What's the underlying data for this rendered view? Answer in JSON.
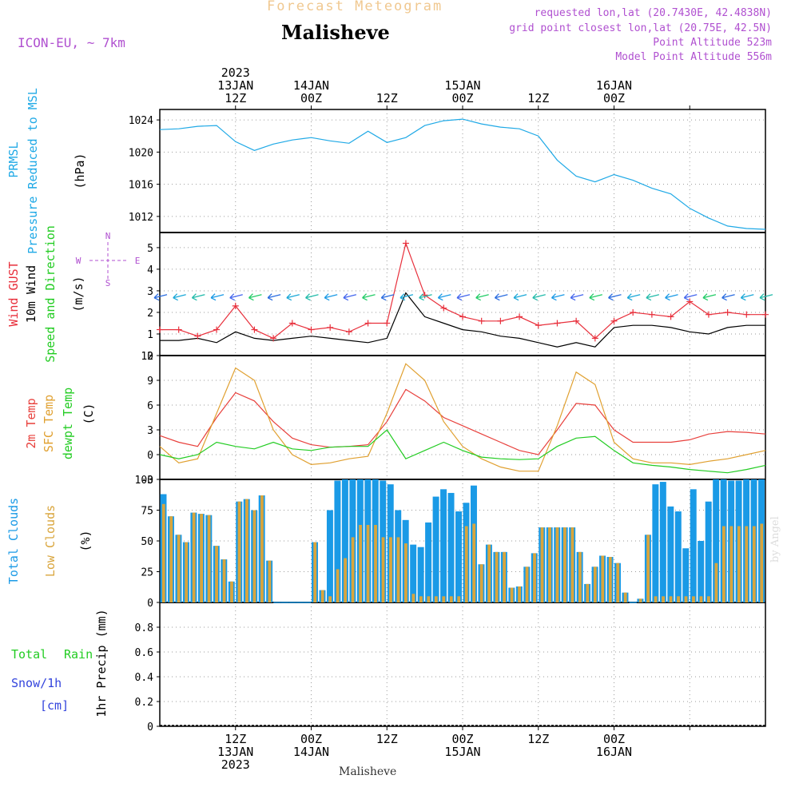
{
  "header": {
    "subtitle": "Forecast Meteogram",
    "location": "Malisheve",
    "model": "ICON-EU, ~ 7km",
    "requested": "requested lon,lat (20.7430E, 42.4838N)",
    "closest": "grid point closest lon,lat (20.75E, 42.5N)",
    "point_altitude": "Point Altitude 523m",
    "model_altitude": "Model Point Altitude 556m",
    "footer_location": "Malisheve",
    "credit": "by Angel"
  },
  "colors": {
    "pressure": "#1fa9e6",
    "gust": "#e8303c",
    "wind": "#000000",
    "temp2m": "#e8403c",
    "sfc": "#e0a030",
    "dewpt": "#22cc22",
    "total_cloud": "#1a9ae6",
    "low_cloud": "#d9a53c",
    "rain": "#22cc22",
    "snow": "#3344dd",
    "title": "#f0c890",
    "info": "#b050d0"
  },
  "chart_data": [
    {
      "panel": "pressure",
      "type": "line",
      "ylabel_lines": [
        "PRMSL",
        "Pressure Reduced to MSL"
      ],
      "unit": "(hPa)",
      "ylim": [
        1010,
        1025.3
      ],
      "yticks": [
        1012,
        1016,
        1020,
        1024
      ],
      "x_hours": [
        0,
        3,
        6,
        9,
        12,
        15,
        18,
        21,
        24,
        27,
        30,
        33,
        36,
        39,
        42,
        45,
        48,
        51,
        54,
        57,
        60,
        63,
        66,
        69,
        72,
        75,
        78,
        81,
        84,
        87,
        90,
        93,
        96
      ],
      "series": [
        {
          "values": [
            1022.8,
            1022.9,
            1023.2,
            1023.3,
            1021.3,
            1020.2,
            1021.0,
            1021.5,
            1021.8,
            1021.4,
            1021.1,
            1022.6,
            1021.2,
            1021.8,
            1023.3,
            1023.9,
            1024.1,
            1023.5,
            1023.1,
            1022.9,
            1022.0,
            1019.0,
            1017.0,
            1016.3,
            1017.2,
            1016.5,
            1015.5,
            1014.8,
            1013.0,
            1011.8,
            1010.8,
            1010.5,
            1010.4
          ]
        }
      ]
    },
    {
      "panel": "wind",
      "type": "line",
      "ylabel_lines": [
        "Wind GUST",
        "10m Wind",
        "Speed and Direction"
      ],
      "unit": "(m/s)",
      "compass": {
        "n": "N",
        "w": "W",
        "e": "E",
        "s": "S"
      },
      "ylim": [
        0,
        5.7
      ],
      "yticks": [
        0,
        1,
        2,
        3,
        4,
        5
      ],
      "x_hours": [
        0,
        3,
        6,
        9,
        12,
        15,
        18,
        21,
        24,
        27,
        30,
        33,
        36,
        39,
        42,
        45,
        48,
        51,
        54,
        57,
        60,
        63,
        66,
        69,
        72,
        75,
        78,
        81,
        84,
        87,
        90,
        93,
        96
      ],
      "series": [
        {
          "name_role": "gust",
          "values": [
            1.2,
            1.2,
            0.9,
            1.2,
            2.3,
            1.2,
            0.8,
            1.5,
            1.2,
            1.3,
            1.1,
            1.5,
            1.5,
            5.2,
            2.8,
            2.2,
            1.8,
            1.6,
            1.6,
            1.8,
            1.4,
            1.5,
            1.6,
            0.8,
            1.6,
            2.0,
            1.9,
            1.8,
            2.5,
            1.9,
            2.0,
            1.9,
            1.9
          ]
        },
        {
          "name_role": "wind",
          "values": [
            0.7,
            0.7,
            0.8,
            0.6,
            1.1,
            0.8,
            0.7,
            0.8,
            0.9,
            0.8,
            0.7,
            0.6,
            0.8,
            2.9,
            1.8,
            1.5,
            1.2,
            1.1,
            0.9,
            0.8,
            0.6,
            0.4,
            0.6,
            0.4,
            1.3,
            1.4,
            1.4,
            1.3,
            1.1,
            1.0,
            1.3,
            1.4,
            1.4
          ]
        }
      ],
      "arrow_level": 2.75
    },
    {
      "panel": "temperature",
      "type": "line",
      "ylabel_lines": [
        "2m Temp",
        "SFC Temp",
        "dewpt Temp"
      ],
      "unit": "(C)",
      "ylim": [
        -3,
        12
      ],
      "yticks": [
        -3,
        0,
        3,
        6,
        9,
        12
      ],
      "x_hours": [
        0,
        3,
        6,
        9,
        12,
        15,
        18,
        21,
        24,
        27,
        30,
        33,
        36,
        39,
        42,
        45,
        48,
        51,
        54,
        57,
        60,
        63,
        66,
        69,
        72,
        75,
        78,
        81,
        84,
        87,
        90,
        93,
        96
      ],
      "series": [
        {
          "name_role": "temp2m",
          "values": [
            2.3,
            1.5,
            1.0,
            4.5,
            7.5,
            6.5,
            4.0,
            2.0,
            1.2,
            0.9,
            1.0,
            1.2,
            4.0,
            7.9,
            6.5,
            4.5,
            3.5,
            2.5,
            1.5,
            0.5,
            0.0,
            3.0,
            6.2,
            6.0,
            3.0,
            1.5,
            1.5,
            1.5,
            1.8,
            2.5,
            2.8,
            2.7,
            2.5
          ]
        },
        {
          "name_role": "sfc",
          "values": [
            1.0,
            -1.0,
            -0.5,
            5.0,
            10.5,
            9.0,
            3.0,
            0.0,
            -1.2,
            -1.0,
            -0.5,
            -0.2,
            5.0,
            11.0,
            9.0,
            4.0,
            1.0,
            -0.5,
            -1.5,
            -2.0,
            -2.0,
            3.5,
            10.0,
            8.5,
            1.5,
            -0.5,
            -1.0,
            -1.0,
            -1.2,
            -0.8,
            -0.5,
            0.0,
            0.5
          ]
        },
        {
          "name_role": "dewpt",
          "values": [
            0.0,
            -0.5,
            0.0,
            1.5,
            1.0,
            0.7,
            1.5,
            0.7,
            0.5,
            0.9,
            1.0,
            1.0,
            3.0,
            -0.5,
            0.5,
            1.5,
            0.5,
            -0.3,
            -0.5,
            -0.6,
            -0.5,
            1.0,
            2.0,
            2.2,
            0.5,
            -1.0,
            -1.3,
            -1.5,
            -1.8,
            -2.0,
            -2.2,
            -1.8,
            -1.3
          ]
        }
      ]
    },
    {
      "panel": "clouds",
      "type": "bar",
      "ylabel_lines": [
        "Total Clouds",
        "Low Clouds"
      ],
      "unit": "(%)",
      "ylim": [
        0,
        100
      ],
      "yticks": [
        0,
        25,
        50,
        75,
        100
      ],
      "series": [
        {
          "name_role": "total",
          "values": [
            88,
            70,
            55,
            49,
            73,
            72,
            71,
            46,
            35,
            17,
            82,
            84,
            75,
            87,
            34,
            0,
            0,
            0,
            0,
            0,
            49,
            10,
            75,
            99,
            100,
            100,
            100,
            100,
            100,
            99,
            96,
            75,
            67,
            47,
            45,
            65,
            86,
            92,
            89,
            74,
            81,
            95,
            31,
            47,
            41,
            41,
            12,
            13,
            29,
            40,
            61,
            61,
            61,
            61,
            61,
            41,
            15,
            29,
            38,
            37,
            32,
            8,
            0,
            3,
            55,
            96,
            98,
            78,
            74,
            44,
            92,
            50,
            82,
            100,
            100,
            99,
            99,
            100,
            100,
            100
          ]
        },
        {
          "name_role": "low",
          "values": [
            80,
            70,
            55,
            49,
            73,
            72,
            71,
            46,
            35,
            17,
            82,
            84,
            75,
            87,
            34,
            0,
            0,
            0,
            0,
            0,
            49,
            10,
            5,
            27,
            36,
            53,
            63,
            63,
            63,
            53,
            53,
            53,
            48,
            7,
            5,
            5,
            5,
            5,
            5,
            5,
            62,
            64,
            31,
            47,
            41,
            41,
            12,
            13,
            29,
            40,
            61,
            61,
            61,
            61,
            61,
            41,
            15,
            29,
            38,
            37,
            32,
            8,
            0,
            3,
            55,
            5,
            5,
            5,
            5,
            5,
            5,
            5,
            5,
            32,
            62,
            62,
            62,
            62,
            62,
            64
          ]
        }
      ]
    },
    {
      "panel": "precip",
      "type": "bar",
      "legend": {
        "total": "Total",
        "rain": "Rain",
        "snow": "Snow/1h",
        "unit": "[cm]"
      },
      "ylabel": "1hr Precip (mm)",
      "ylim": [
        0,
        1
      ],
      "yticks": [
        "0",
        "0.2",
        "0.4",
        "0.6",
        "0.8"
      ],
      "series": [
        {
          "name_role": "total",
          "values": []
        }
      ]
    }
  ],
  "time_axis": {
    "top_labels": [
      {
        "h": 12,
        "lines": [
          "2023",
          "13JAN",
          "12Z"
        ]
      },
      {
        "h": 24,
        "lines": [
          "14JAN",
          "00Z"
        ]
      },
      {
        "h": 36,
        "lines": [
          "12Z"
        ]
      },
      {
        "h": 48,
        "lines": [
          "15JAN",
          "00Z"
        ]
      },
      {
        "h": 60,
        "lines": [
          "12Z"
        ]
      },
      {
        "h": 72,
        "lines": [
          "16JAN",
          "00Z"
        ]
      }
    ],
    "bottom_labels": [
      {
        "h": 12,
        "lines": [
          "12Z",
          "13JAN",
          "2023"
        ]
      },
      {
        "h": 24,
        "lines": [
          "00Z",
          "14JAN"
        ]
      },
      {
        "h": 36,
        "lines": [
          "12Z"
        ]
      },
      {
        "h": 48,
        "lines": [
          "00Z",
          "15JAN"
        ]
      },
      {
        "h": 60,
        "lines": [
          "12Z"
        ]
      },
      {
        "h": 72,
        "lines": [
          "00Z",
          "16JAN"
        ]
      }
    ]
  }
}
